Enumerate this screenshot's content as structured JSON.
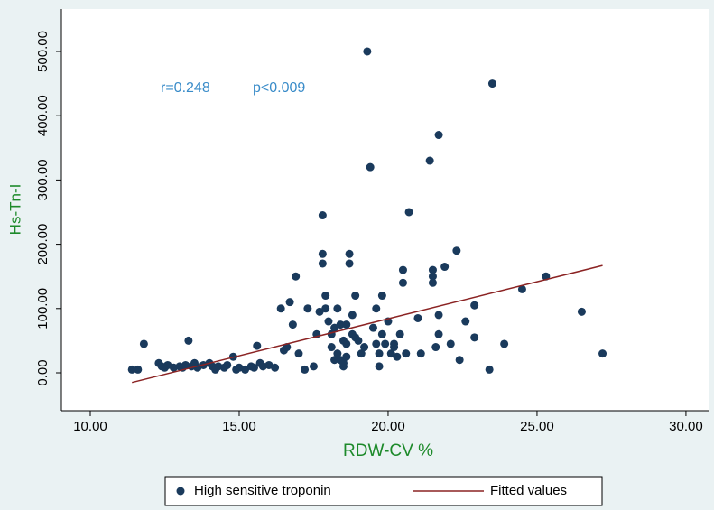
{
  "chart_data": {
    "type": "scatter",
    "xlabel": "RDW-CV %",
    "ylabel": "Hs-Tn-I",
    "annotations": [
      "r=0.248",
      "p<0.009"
    ],
    "xlim": [
      9.03,
      30.76
    ],
    "ylim": [
      -59,
      566
    ],
    "xticks": [
      {
        "value": 10,
        "label": "10.00"
      },
      {
        "value": 15,
        "label": "15.00"
      },
      {
        "value": 20,
        "label": "20.00"
      },
      {
        "value": 25,
        "label": "25.00"
      },
      {
        "value": 30,
        "label": "30.00"
      }
    ],
    "yticks": [
      {
        "value": 0,
        "label": "0.00"
      },
      {
        "value": 100,
        "label": "100.00"
      },
      {
        "value": 200,
        "label": "200.00"
      },
      {
        "value": 300,
        "label": "300.00"
      },
      {
        "value": 400,
        "label": "400.00"
      },
      {
        "value": 500,
        "label": "500.00"
      }
    ],
    "series": [
      {
        "name": "High sensitive troponin",
        "color": "#1a3a5c",
        "type": "scatter",
        "x": [
          11.4,
          11.6,
          11.8,
          12.3,
          12.4,
          12.5,
          12.6,
          12.8,
          13.0,
          13.1,
          13.2,
          13.3,
          13.4,
          13.5,
          13.6,
          13.8,
          14.0,
          14.1,
          14.2,
          14.3,
          14.5,
          14.6,
          14.8,
          14.9,
          15.0,
          15.2,
          15.4,
          15.5,
          15.6,
          15.7,
          15.8,
          16.0,
          16.2,
          16.4,
          16.5,
          16.6,
          16.7,
          16.8,
          16.9,
          17.0,
          17.2,
          17.3,
          17.5,
          17.6,
          17.7,
          17.8,
          17.8,
          17.8,
          17.9,
          17.9,
          18.0,
          18.1,
          18.1,
          18.2,
          18.3,
          18.3,
          18.4,
          18.5,
          18.5,
          18.6,
          18.6,
          18.7,
          18.7,
          18.8,
          18.8,
          18.9,
          19.0,
          19.2,
          19.3,
          19.4,
          19.5,
          19.6,
          19.7,
          19.7,
          19.8,
          19.9,
          20.0,
          20.1,
          20.2,
          20.4,
          20.5,
          20.5,
          20.6,
          20.7,
          21.0,
          21.1,
          21.4,
          21.5,
          21.5,
          21.5,
          21.6,
          21.7,
          21.7,
          21.7,
          21.9,
          22.1,
          22.3,
          22.4,
          22.6,
          22.9,
          22.9,
          23.4,
          23.5,
          23.9,
          24.5,
          25.3,
          26.5,
          27.2,
          18.4,
          18.6,
          18.9,
          19.1,
          19.6,
          19.8,
          20.2,
          20.3,
          18.2,
          18.5
        ],
        "values": [
          5,
          5,
          45,
          15,
          10,
          8,
          12,
          8,
          10,
          8,
          12,
          50,
          10,
          15,
          8,
          12,
          15,
          10,
          5,
          10,
          8,
          12,
          25,
          5,
          8,
          5,
          10,
          8,
          42,
          15,
          10,
          12,
          8,
          100,
          35,
          40,
          110,
          75,
          150,
          30,
          5,
          100,
          10,
          60,
          95,
          245,
          185,
          170,
          120,
          100,
          80,
          60,
          40,
          70,
          100,
          30,
          20,
          50,
          10,
          25,
          75,
          185,
          170,
          60,
          90,
          120,
          50,
          40,
          500,
          320,
          70,
          100,
          30,
          10,
          120,
          45,
          80,
          30,
          45,
          60,
          160,
          140,
          30,
          250,
          85,
          30,
          330,
          160,
          150,
          140,
          40,
          370,
          90,
          60,
          165,
          45,
          190,
          20,
          80,
          105,
          55,
          5,
          450,
          45,
          130,
          150,
          95,
          30,
          75,
          45,
          55,
          30,
          45,
          60,
          40,
          25,
          20,
          15
        ]
      },
      {
        "name": "Fitted values",
        "color": "#8b2323",
        "type": "line",
        "x": [
          11.4,
          27.2
        ],
        "values": [
          -15,
          167
        ]
      }
    ]
  }
}
